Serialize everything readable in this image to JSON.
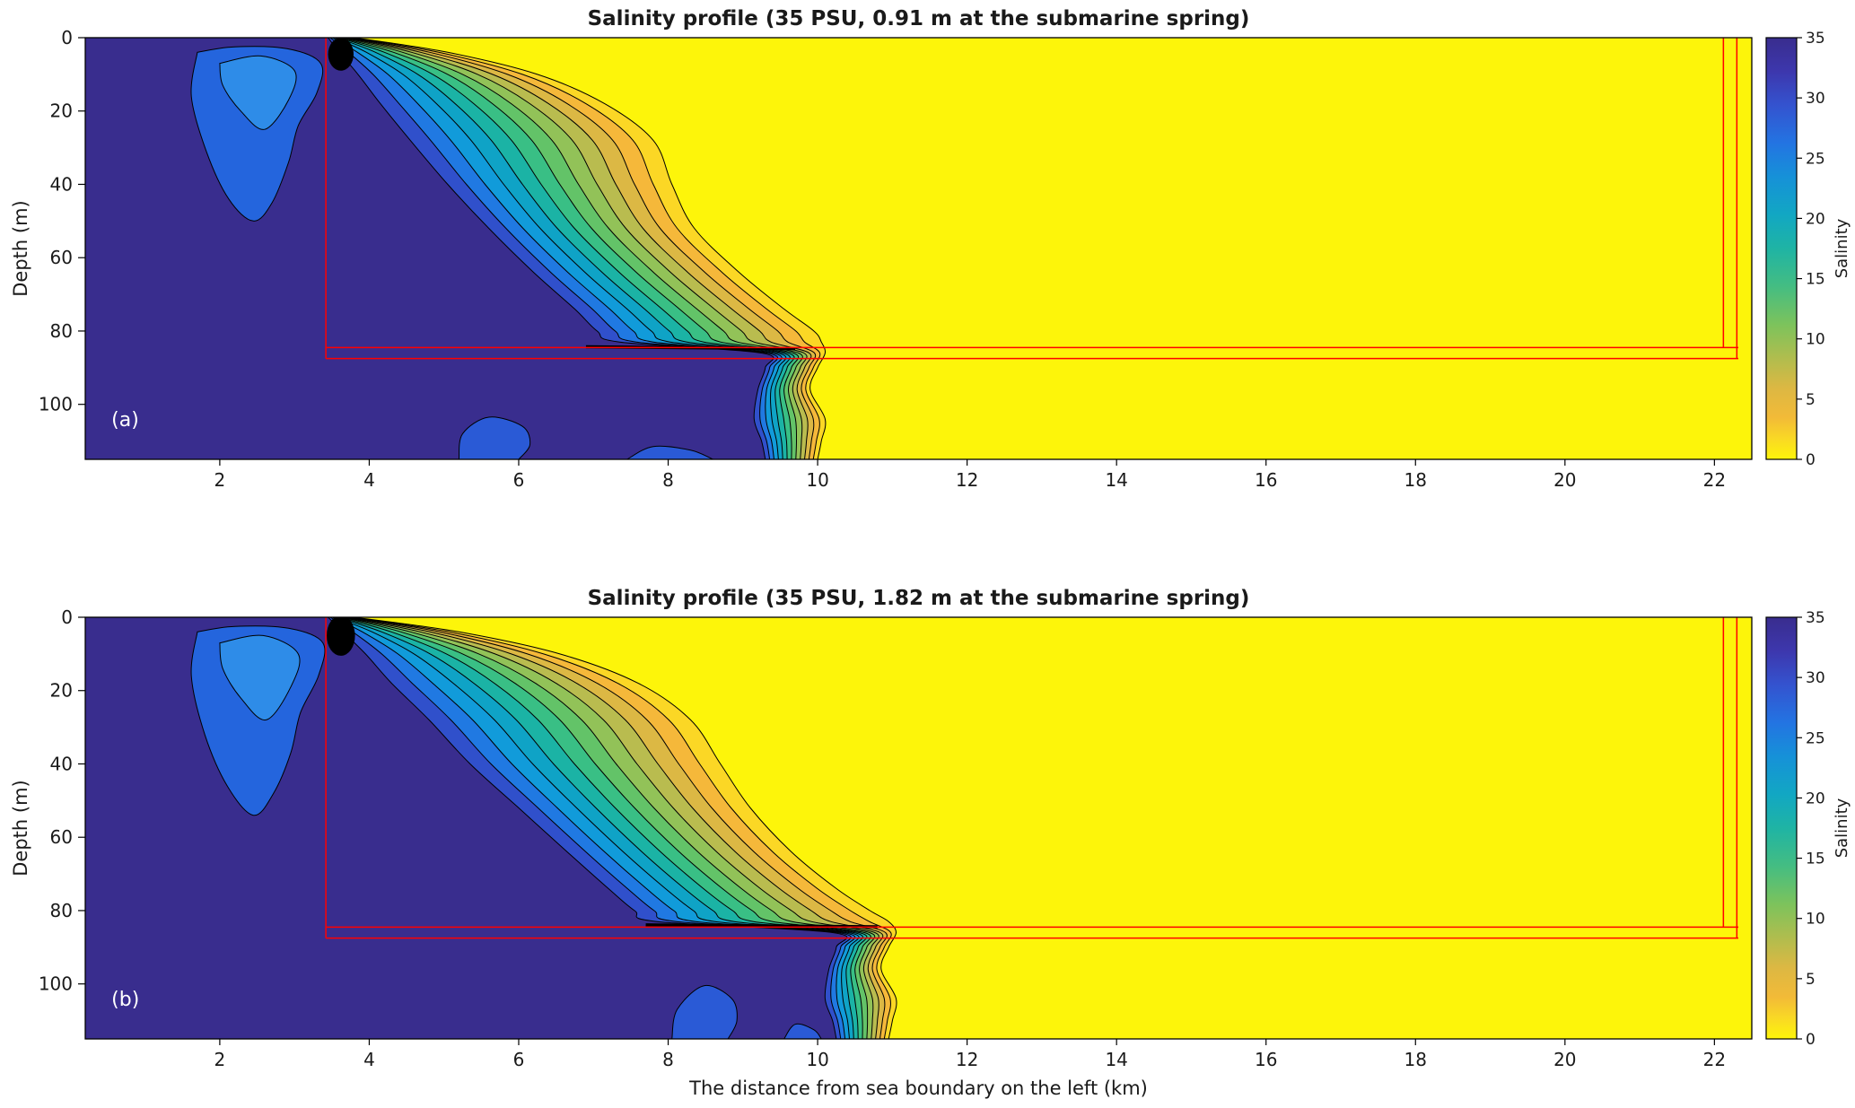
{
  "figure": {
    "background": "#ffffff",
    "panel_count": 2
  },
  "chart_data": [
    {
      "type": "contour",
      "panel_label": "(a)",
      "title": "Salinity profile (35 PSU, 0.91 m at the submarine spring)",
      "xlabel": "",
      "ylabel": "Depth (m)",
      "xlim": [
        0.2,
        22.5
      ],
      "depth_lim": [
        0,
        115
      ],
      "xticks": [
        2,
        4,
        6,
        8,
        10,
        12,
        14,
        16,
        18,
        20,
        22
      ],
      "yticks": [
        0,
        20,
        40,
        60,
        80,
        100
      ],
      "colorbar": {
        "label": "Salinity",
        "min": 0,
        "max": 35,
        "ticks": [
          0,
          5,
          10,
          15,
          20,
          25,
          30,
          35
        ],
        "gradient_stops": [
          [
            0,
            "#392d8e"
          ],
          [
            8,
            "#3d37ad"
          ],
          [
            16,
            "#3453cf"
          ],
          [
            25,
            "#2374e2"
          ],
          [
            33,
            "#1691d8"
          ],
          [
            42,
            "#12a7c3"
          ],
          [
            50,
            "#1fb4a4"
          ],
          [
            59,
            "#44bd82"
          ],
          [
            68,
            "#7cc35c"
          ],
          [
            76,
            "#b0bd4e"
          ],
          [
            83,
            "#dcb843"
          ],
          [
            90,
            "#f2ba38"
          ],
          [
            95,
            "#f9d825"
          ],
          [
            100,
            "#fdf50a"
          ]
        ]
      },
      "colormap_note": "reversed parula: 0 PSU = yellow (fresh water), 35 PSU = dark blue (sea water)",
      "contour_levels": [
        2.5,
        5,
        7.5,
        10,
        12.5,
        15,
        17.5,
        20,
        22.5,
        25,
        27.5,
        30,
        32.5
      ],
      "band_colors": [
        "#fdf50a",
        "#fbd725",
        "#f5b83a",
        "#dcb844",
        "#b9bc4f",
        "#92c258",
        "#63c368",
        "#39bf85",
        "#1bb3a5",
        "#0fa3c6",
        "#119bda",
        "#2079e2",
        "#3050cb",
        "#392d8e"
      ],
      "depth_stations": [
        0,
        4,
        10,
        18,
        28,
        40,
        52,
        64,
        74,
        80,
        83,
        86,
        90,
        96,
        104,
        110,
        115
      ],
      "isohaline_outer_2p5_x": [
        3.8,
        5.05,
        6.25,
        7.15,
        7.8,
        8.05,
        8.35,
        8.95,
        9.55,
        9.95,
        10.05,
        10.1,
        10.0,
        9.9,
        10.1,
        10.05,
        10.0
      ],
      "isohaline_inner_32p5_x": [
        3.45,
        3.6,
        3.85,
        4.15,
        4.55,
        5.05,
        5.6,
        6.2,
        6.75,
        7.05,
        7.35,
        9.25,
        9.3,
        9.2,
        9.15,
        9.25,
        9.3
      ],
      "surface_low_salinity_pool": {
        "outer_color": "#2465dd",
        "inner_color": "#2e8ce8",
        "outer": [
          [
            1.7,
            4
          ],
          [
            2.2,
            2.5
          ],
          [
            2.9,
            3
          ],
          [
            3.35,
            7
          ],
          [
            3.3,
            15
          ],
          [
            3.05,
            24
          ],
          [
            2.92,
            34
          ],
          [
            2.7,
            45
          ],
          [
            2.45,
            50
          ],
          [
            2.12,
            44
          ],
          [
            1.82,
            31
          ],
          [
            1.62,
            16
          ],
          [
            1.7,
            4
          ]
        ],
        "inner": [
          [
            2.0,
            7
          ],
          [
            2.55,
            5
          ],
          [
            3.0,
            9
          ],
          [
            2.92,
            17
          ],
          [
            2.6,
            25
          ],
          [
            2.28,
            20
          ],
          [
            2.04,
            13
          ],
          [
            2.0,
            7
          ]
        ]
      },
      "deep_blob_color": "#2a5ad6",
      "deep_freshwater_blobs": [
        {
          "points": [
            [
              5.2,
              115
            ],
            [
              5.25,
              108
            ],
            [
              5.6,
              103.5
            ],
            [
              6.05,
              106
            ],
            [
              6.15,
              111
            ],
            [
              6.0,
              115
            ]
          ]
        },
        {
          "points": [
            [
              7.45,
              115
            ],
            [
              7.8,
              111.5
            ],
            [
              8.3,
              112.5
            ],
            [
              8.6,
              115
            ]
          ]
        }
      ],
      "aquifer_outline_red": {
        "color": "#ff0000",
        "left_vertical_x": 3.42,
        "left_vertical_depths": [
          0,
          87.5
        ],
        "horizontal_depths": [
          84.5,
          87.5
        ],
        "horizontal_x": [
          3.42,
          22.32
        ],
        "right_vertical_xs": [
          22.12,
          22.3
        ],
        "right_vertical_depths": [
          0,
          87.5
        ]
      },
      "convergence_line": {
        "from": [
          6.9,
          84.3
        ],
        "to": [
          9.7,
          84.8
        ]
      },
      "spring_smudge": {
        "cx": 3.62,
        "cy": 4.5,
        "rx": 0.17,
        "ry": 4.5
      }
    },
    {
      "type": "contour",
      "panel_label": "(b)",
      "title": "Salinity profile (35 PSU, 1.82 m at the submarine spring)",
      "xlabel": "The distance from sea boundary on the left (km)",
      "ylabel": "Depth (m)",
      "xlim": [
        0.2,
        22.5
      ],
      "depth_lim": [
        0,
        115
      ],
      "xticks": [
        2,
        4,
        6,
        8,
        10,
        12,
        14,
        16,
        18,
        20,
        22
      ],
      "yticks": [
        0,
        20,
        40,
        60,
        80,
        100
      ],
      "colorbar": {
        "label": "Salinity",
        "min": 0,
        "max": 35,
        "ticks": [
          0,
          5,
          10,
          15,
          20,
          25,
          30,
          35
        ],
        "gradient_stops": [
          [
            0,
            "#392d8e"
          ],
          [
            8,
            "#3d37ad"
          ],
          [
            16,
            "#3453cf"
          ],
          [
            25,
            "#2374e2"
          ],
          [
            33,
            "#1691d8"
          ],
          [
            42,
            "#12a7c3"
          ],
          [
            50,
            "#1fb4a4"
          ],
          [
            59,
            "#44bd82"
          ],
          [
            68,
            "#7cc35c"
          ],
          [
            76,
            "#b0bd4e"
          ],
          [
            83,
            "#dcb843"
          ],
          [
            90,
            "#f2ba38"
          ],
          [
            95,
            "#f9d825"
          ],
          [
            100,
            "#fdf50a"
          ]
        ]
      },
      "colormap_note": "reversed parula: 0 PSU = yellow (fresh water), 35 PSU = dark blue (sea water)",
      "contour_levels": [
        2.5,
        5,
        7.5,
        10,
        12.5,
        15,
        17.5,
        20,
        22.5,
        25,
        27.5,
        30,
        32.5
      ],
      "band_colors": [
        "#fdf50a",
        "#fbd725",
        "#f5b83a",
        "#dcb844",
        "#b9bc4f",
        "#92c258",
        "#63c368",
        "#39bf85",
        "#1bb3a5",
        "#0fa3c6",
        "#119bda",
        "#2079e2",
        "#3050cb",
        "#392d8e"
      ],
      "depth_stations": [
        0,
        4,
        10,
        18,
        28,
        40,
        52,
        64,
        74,
        80,
        83,
        86,
        90,
        96,
        104,
        110,
        115
      ],
      "isohaline_outer_2p5_x": [
        3.8,
        5.2,
        6.55,
        7.6,
        8.3,
        8.7,
        9.1,
        9.65,
        10.25,
        10.7,
        10.95,
        11.05,
        10.95,
        10.85,
        11.05,
        11.0,
        10.95
      ],
      "isohaline_inner_32p5_x": [
        3.45,
        3.65,
        3.95,
        4.3,
        4.8,
        5.35,
        6.0,
        6.65,
        7.2,
        7.55,
        7.85,
        10.2,
        10.25,
        10.15,
        10.1,
        10.2,
        10.25
      ],
      "surface_low_salinity_pool": {
        "outer_color": "#2465dd",
        "inner_color": "#2e8ce8",
        "outer": [
          [
            1.7,
            4
          ],
          [
            2.2,
            2.5
          ],
          [
            2.92,
            3
          ],
          [
            3.38,
            7
          ],
          [
            3.32,
            16
          ],
          [
            3.08,
            26
          ],
          [
            2.95,
            37
          ],
          [
            2.72,
            48
          ],
          [
            2.45,
            54
          ],
          [
            2.1,
            46
          ],
          [
            1.8,
            32
          ],
          [
            1.62,
            16
          ],
          [
            1.7,
            4
          ]
        ],
        "inner": [
          [
            2.0,
            7
          ],
          [
            2.58,
            5
          ],
          [
            3.05,
            10
          ],
          [
            2.95,
            19
          ],
          [
            2.62,
            28
          ],
          [
            2.28,
            22
          ],
          [
            2.04,
            14
          ],
          [
            2.0,
            7
          ]
        ]
      },
      "deep_blob_color": "#2a5ad6",
      "deep_freshwater_blobs": [
        {
          "points": [
            [
              8.05,
              115
            ],
            [
              8.12,
              107
            ],
            [
              8.48,
              100.5
            ],
            [
              8.85,
              104
            ],
            [
              8.92,
              110
            ],
            [
              8.8,
              115
            ]
          ]
        },
        {
          "points": [
            [
              9.55,
              115
            ],
            [
              9.7,
              111
            ],
            [
              9.95,
              112.5
            ],
            [
              10.05,
              115
            ]
          ]
        }
      ],
      "aquifer_outline_red": {
        "color": "#ff0000",
        "left_vertical_x": 3.42,
        "left_vertical_depths": [
          0,
          87.5
        ],
        "horizontal_depths": [
          84.5,
          87.5
        ],
        "horizontal_x": [
          3.42,
          22.32
        ],
        "right_vertical_xs": [
          22.12,
          22.3
        ],
        "right_vertical_depths": [
          0,
          87.5
        ]
      },
      "convergence_line": {
        "from": [
          7.7,
          83.9
        ],
        "to": [
          10.8,
          84.4
        ]
      },
      "spring_smudge": {
        "cx": 3.62,
        "cy": 5,
        "rx": 0.19,
        "ry": 5.5
      }
    }
  ]
}
